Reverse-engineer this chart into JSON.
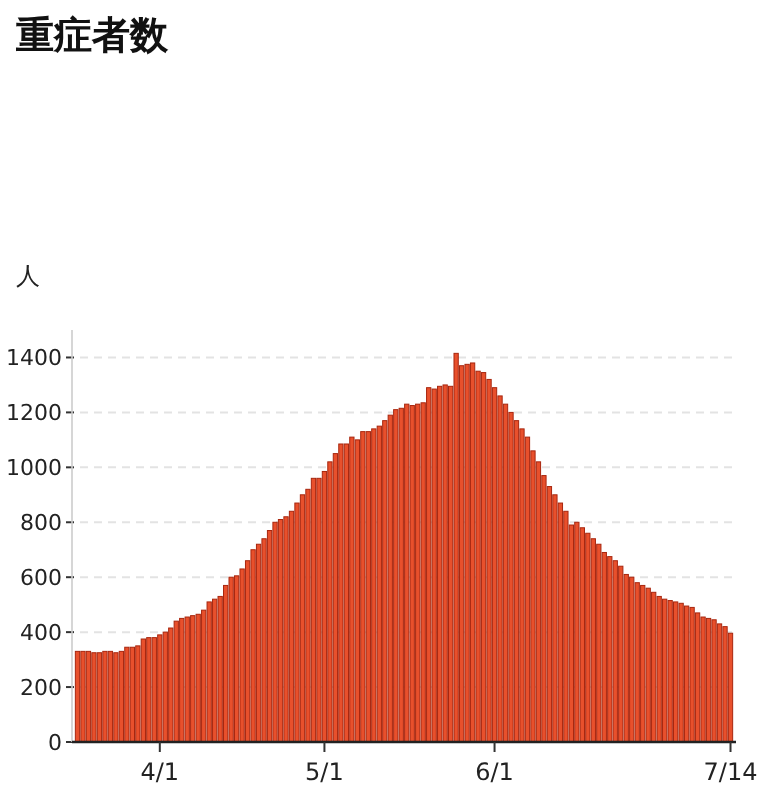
{
  "chart_data": {
    "type": "bar",
    "title": "重症者数",
    "ylabel": "人",
    "x": [
      "--03-17",
      "--03-18",
      "--03-19",
      "--03-20",
      "--03-21",
      "--03-22",
      "--03-23",
      "--03-24",
      "--03-25",
      "--03-26",
      "--03-27",
      "--03-28",
      "--03-29",
      "--03-30",
      "--03-31",
      "--04-01",
      "--04-02",
      "--04-03",
      "--04-04",
      "--04-05",
      "--04-06",
      "--04-07",
      "--04-08",
      "--04-09",
      "--04-10",
      "--04-11",
      "--04-12",
      "--04-13",
      "--04-14",
      "--04-15",
      "--04-16",
      "--04-17",
      "--04-18",
      "--04-19",
      "--04-20",
      "--04-21",
      "--04-22",
      "--04-23",
      "--04-24",
      "--04-25",
      "--04-26",
      "--04-27",
      "--04-28",
      "--04-29",
      "--04-30",
      "--05-01",
      "--05-02",
      "--05-03",
      "--05-04",
      "--05-05",
      "--05-06",
      "--05-07",
      "--05-08",
      "--05-09",
      "--05-10",
      "--05-11",
      "--05-12",
      "--05-13",
      "--05-14",
      "--05-15",
      "--05-16",
      "--05-17",
      "--05-18",
      "--05-19",
      "--05-20",
      "--05-21",
      "--05-22",
      "--05-23",
      "--05-24",
      "--05-25",
      "--05-26",
      "--05-27",
      "--05-28",
      "--05-29",
      "--05-30",
      "--05-31",
      "--06-01",
      "--06-02",
      "--06-03",
      "--06-04",
      "--06-05",
      "--06-06",
      "--06-07",
      "--06-08",
      "--06-09",
      "--06-10",
      "--06-11",
      "--06-12",
      "--06-13",
      "--06-14",
      "--06-15",
      "--06-16",
      "--06-17",
      "--06-18",
      "--06-19",
      "--06-20",
      "--06-21",
      "--06-22",
      "--06-23",
      "--06-24",
      "--06-25",
      "--06-26",
      "--06-27",
      "--06-28",
      "--06-29",
      "--06-30",
      "--07-01",
      "--07-02",
      "--07-03",
      "--07-04",
      "--07-05",
      "--07-06",
      "--07-07",
      "--07-08",
      "--07-09",
      "--07-10",
      "--07-11",
      "--07-12",
      "--07-13",
      "--07-14"
    ],
    "values": [
      330,
      330,
      330,
      325,
      325,
      330,
      330,
      325,
      330,
      345,
      345,
      350,
      375,
      380,
      380,
      390,
      400,
      415,
      440,
      450,
      455,
      460,
      465,
      480,
      510,
      520,
      530,
      570,
      600,
      605,
      630,
      660,
      700,
      720,
      740,
      770,
      800,
      810,
      820,
      840,
      870,
      900,
      920,
      960,
      960,
      985,
      1020,
      1050,
      1085,
      1085,
      1110,
      1100,
      1130,
      1130,
      1140,
      1150,
      1170,
      1190,
      1210,
      1215,
      1230,
      1225,
      1230,
      1235,
      1290,
      1285,
      1295,
      1300,
      1295,
      1415,
      1370,
      1375,
      1380,
      1350,
      1345,
      1320,
      1290,
      1260,
      1230,
      1200,
      1170,
      1140,
      1110,
      1060,
      1020,
      970,
      930,
      900,
      870,
      840,
      790,
      800,
      780,
      760,
      740,
      720,
      690,
      675,
      660,
      640,
      610,
      600,
      580,
      570,
      560,
      545,
      530,
      520,
      515,
      510,
      505,
      495,
      490,
      470,
      455,
      450,
      445,
      430,
      420,
      396
    ],
    "color": "#e8502c",
    "xlim": [
      "--03-16",
      "--07-15"
    ],
    "xticks": [
      {
        "value": "--04-01",
        "label": "4/1"
      },
      {
        "value": "--05-01",
        "label": "5/1"
      },
      {
        "value": "--06-01",
        "label": "6/1"
      },
      {
        "value": "--07-14",
        "label": "7/14"
      }
    ],
    "ylim": [
      0,
      1500
    ],
    "yticks": [
      0,
      200,
      400,
      600,
      800,
      1000,
      1200,
      1400
    ],
    "grid": "y"
  }
}
